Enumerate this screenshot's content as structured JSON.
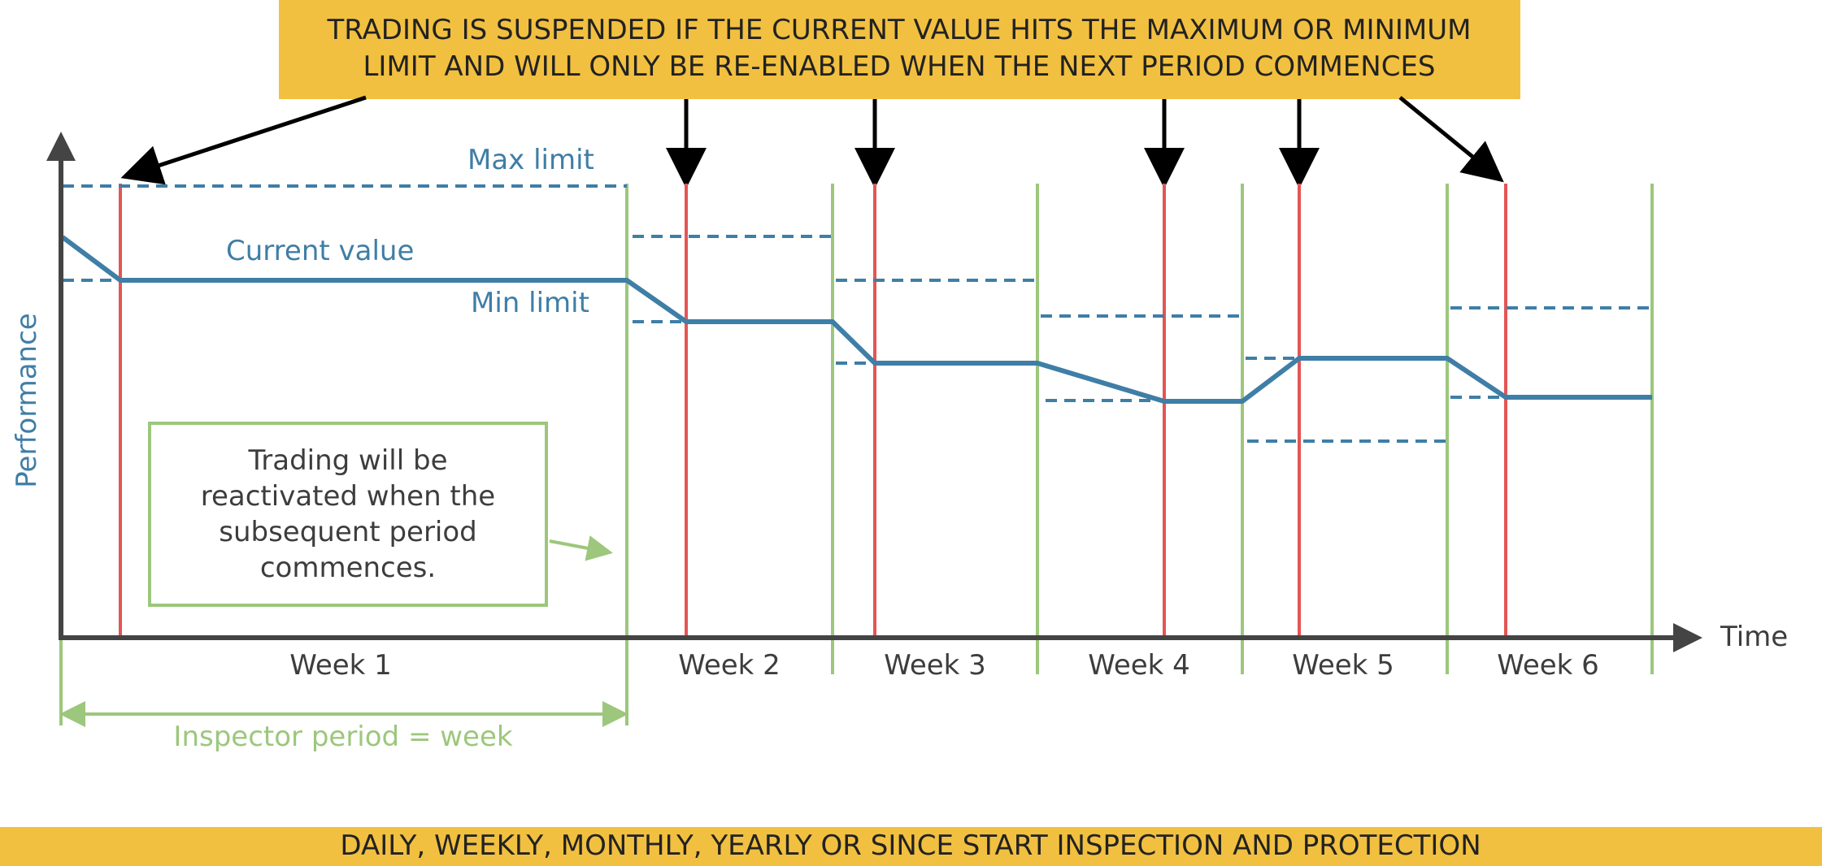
{
  "top_banner": {
    "line1": "TRADING IS SUSPENDED IF THE CURRENT VALUE HITS THE MAXIMUM OR MINIMUM",
    "line2": "LIMIT AND WILL ONLY BE RE-ENABLED WHEN THE NEXT PERIOD COMMENCES"
  },
  "bottom_banner": {
    "text": "DAILY, WEEKLY, MONTHLY, YEARLY OR SINCE START INSPECTION AND PROTECTION"
  },
  "axes": {
    "y_label": "Performance",
    "x_label": "Time"
  },
  "series_labels": {
    "max_limit": "Max limit",
    "current_value": "Current value",
    "min_limit": "Min limit"
  },
  "weeks": [
    "Week 1",
    "Week 2",
    "Week 3",
    "Week 4",
    "Week 5",
    "Week 6"
  ],
  "note_box": {
    "lines": [
      "Trading will be",
      "reactivated when the",
      "subsequent period",
      "commences."
    ]
  },
  "period_label": "Inspector period = week",
  "colors": {
    "banner": "#f2c040",
    "value_line": "#3f7ea6",
    "suspend_line": "#e45555",
    "period_line": "#9cc77c",
    "axis": "#444444",
    "arrow": "#000000"
  }
}
